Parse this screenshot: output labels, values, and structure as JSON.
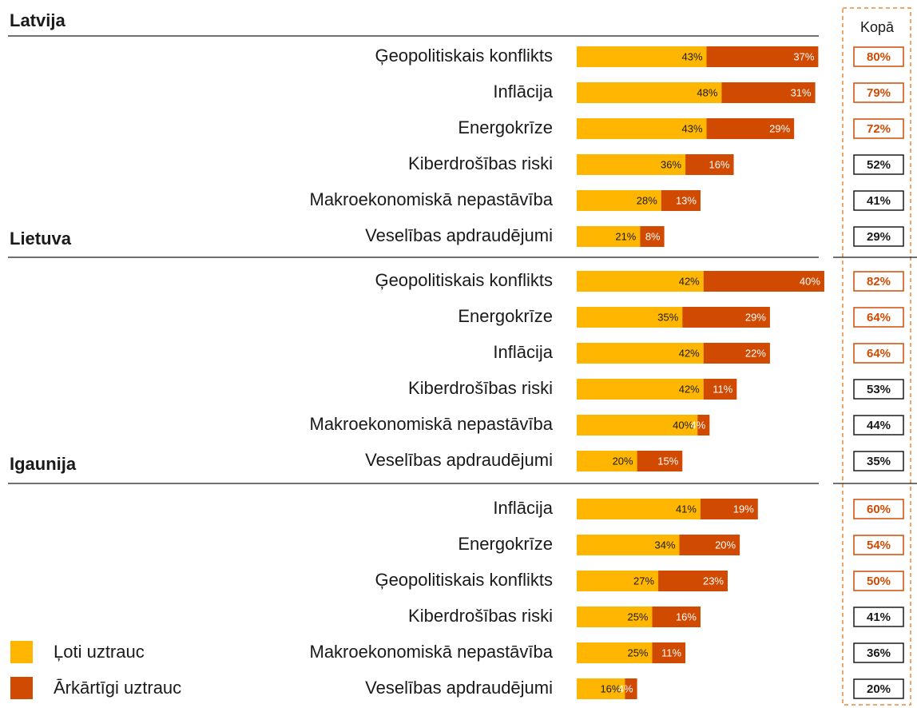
{
  "column_header": "Kopā",
  "chart_data": [
    {
      "type": "bar",
      "title": "Latvija",
      "categories": [
        "Ģeopolitiskais konflikts",
        "Inflācija",
        "Energokrīze",
        "Kiberdrošības riski",
        "Makroekonomiskā nepastāvība",
        "Veselības apdraudējumi"
      ],
      "series": [
        {
          "name": "Ļoti uztrauc",
          "color": "#FFB600",
          "values": [
            43,
            48,
            43,
            36,
            28,
            21
          ],
          "value_labels": [
            "43%",
            "48%",
            "43%",
            "36%",
            "28%",
            "21%"
          ]
        },
        {
          "name": "Ārkārtīgi uztrauc",
          "color": "#D04A02",
          "values": [
            37,
            31,
            29,
            16,
            13,
            8
          ],
          "value_labels": [
            "37%",
            "31%",
            "29%",
            "16%",
            "13%",
            "8%"
          ]
        }
      ],
      "totals": [
        80,
        79,
        72,
        52,
        41,
        29
      ],
      "total_labels": [
        "80%",
        "79%",
        "72%",
        "52%",
        "41%",
        "29%"
      ],
      "total_colors": [
        "#D04A02",
        "#D04A02",
        "#D04A02",
        "#1a1a1a",
        "#1a1a1a",
        "#1a1a1a"
      ]
    },
    {
      "type": "bar",
      "title": "Lietuva",
      "categories": [
        "Ģeopolitiskais konflikts",
        "Energokrīze",
        "Inflācija",
        "Kiberdrošības riski",
        "Makroekonomiskā nepastāvība",
        "Veselības apdraudējumi"
      ],
      "series": [
        {
          "name": "Ļoti uztrauc",
          "color": "#FFB600",
          "values": [
            42,
            35,
            42,
            42,
            40,
            20
          ],
          "value_labels": [
            "42%",
            "35%",
            "42%",
            "42%",
            "40%",
            "20%"
          ]
        },
        {
          "name": "Ārkārtīgi uztrauc",
          "color": "#D04A02",
          "values": [
            40,
            29,
            22,
            11,
            4,
            15
          ],
          "value_labels": [
            "40%",
            "29%",
            "22%",
            "11%",
            "4%",
            "15%"
          ]
        }
      ],
      "totals": [
        82,
        64,
        64,
        53,
        44,
        35
      ],
      "total_labels": [
        "82%",
        "64%",
        "64%",
        "53%",
        "44%",
        "35%"
      ],
      "total_colors": [
        "#D04A02",
        "#D04A02",
        "#D04A02",
        "#1a1a1a",
        "#1a1a1a",
        "#1a1a1a"
      ]
    },
    {
      "type": "bar",
      "title": "Igaunija",
      "categories": [
        "Inflācija",
        "Energokrīze",
        "Ģeopolitiskais konflikts",
        "Kiberdrošības riski",
        "Makroekonomiskā nepastāvība",
        "Veselības apdraudējumi"
      ],
      "series": [
        {
          "name": "Ļoti uztrauc",
          "color": "#FFB600",
          "values": [
            41,
            34,
            27,
            25,
            25,
            16
          ],
          "value_labels": [
            "41%",
            "34%",
            "27%",
            "25%",
            "25%",
            "16%"
          ]
        },
        {
          "name": "Ārkārtīgi uztrauc",
          "color": "#D04A02",
          "values": [
            19,
            20,
            23,
            16,
            11,
            4
          ],
          "value_labels": [
            "19%",
            "20%",
            "23%",
            "16%",
            "11%",
            "4%"
          ]
        }
      ],
      "totals": [
        60,
        54,
        50,
        41,
        36,
        20
      ],
      "total_labels": [
        "60%",
        "54%",
        "50%",
        "41%",
        "36%",
        "20%"
      ],
      "total_colors": [
        "#D04A02",
        "#D04A02",
        "#D04A02",
        "#1a1a1a",
        "#1a1a1a",
        "#1a1a1a"
      ]
    }
  ]
}
